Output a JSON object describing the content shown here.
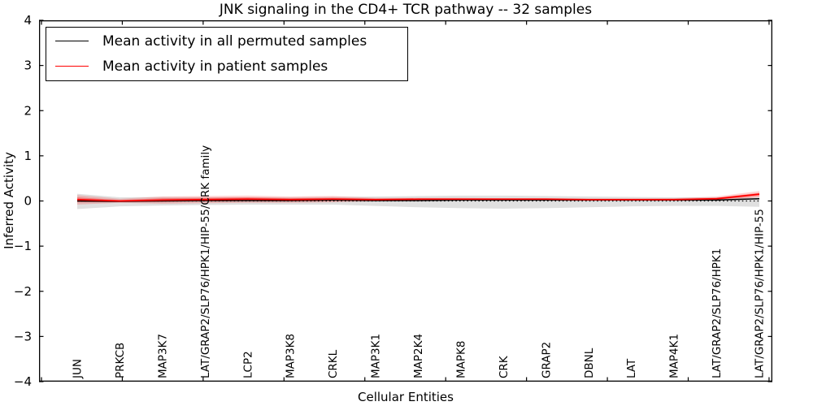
{
  "chart_data": {
    "type": "line",
    "title": "JNK signaling in the CD4+ TCR pathway -- 32 samples",
    "xlabel": "Cellular Entities",
    "ylabel": "Inferred Activity",
    "ylim": [
      -4,
      4
    ],
    "yticks": [
      4,
      3,
      2,
      1,
      0,
      -1,
      -2,
      -3,
      -4
    ],
    "grid": false,
    "categories": [
      "JUN",
      "PRKCB",
      "MAP3K7",
      "LAT/GRAP2/SLP76/HPK1/HIP-55/CRK family",
      "LCP2",
      "MAP3K8",
      "CRKL",
      "MAP3K1",
      "MAP2K4",
      "MAPK8",
      "CRK",
      "GRAP2",
      "DBNL",
      "LAT",
      "MAP4K1",
      "LAT/GRAP2/SLP76/HPK1",
      "LAT/GRAP2/SLP76/HPK1/HIP-55"
    ],
    "series": [
      {
        "name": "Mean activity in all permuted samples",
        "color": "#000000",
        "band_color": "rgba(0,0,0,0.12)",
        "values": [
          0.0,
          -0.01,
          0.0,
          0.01,
          0.01,
          0.01,
          0.02,
          0.01,
          0.01,
          0.02,
          0.02,
          0.02,
          0.02,
          0.02,
          0.02,
          0.02,
          0.05
        ],
        "band_upper": [
          0.16,
          0.08,
          0.09,
          0.08,
          0.08,
          0.08,
          0.09,
          0.1,
          0.11,
          0.12,
          0.12,
          0.11,
          0.1,
          0.09,
          0.08,
          0.08,
          0.09
        ],
        "band_lower": [
          -0.18,
          -0.12,
          -0.1,
          -0.09,
          -0.08,
          -0.08,
          -0.08,
          -0.11,
          -0.14,
          -0.16,
          -0.17,
          -0.16,
          -0.14,
          -0.12,
          -0.11,
          -0.11,
          -0.13
        ]
      },
      {
        "name": "Mean activity in patient samples",
        "color": "#ff0000",
        "band_color": "rgba(255,0,0,0.18)",
        "inner_band_color": "rgba(255,0,0,0.30)",
        "values": [
          0.03,
          0.0,
          0.02,
          0.03,
          0.04,
          0.03,
          0.04,
          0.03,
          0.04,
          0.04,
          0.04,
          0.04,
          0.03,
          0.03,
          0.03,
          0.05,
          0.15
        ],
        "band_upper": [
          0.13,
          0.05,
          0.1,
          0.11,
          0.12,
          0.1,
          0.11,
          0.07,
          0.07,
          0.07,
          0.06,
          0.06,
          0.05,
          0.05,
          0.06,
          0.1,
          0.22
        ],
        "band_lower": [
          -0.08,
          -0.04,
          -0.06,
          -0.05,
          -0.04,
          -0.04,
          -0.03,
          -0.01,
          0.01,
          0.01,
          0.01,
          0.02,
          0.01,
          0.01,
          0.01,
          0.01,
          0.08
        ],
        "inner_band_upper": [
          0.08,
          0.02,
          0.06,
          0.07,
          0.08,
          0.06,
          0.07,
          0.05,
          0.05,
          0.05,
          0.05,
          0.05,
          0.04,
          0.04,
          0.04,
          0.07,
          0.18
        ],
        "inner_band_lower": [
          -0.03,
          -0.02,
          -0.02,
          -0.01,
          0.0,
          -0.01,
          0.0,
          0.01,
          0.02,
          0.02,
          0.02,
          0.03,
          0.02,
          0.02,
          0.02,
          0.03,
          0.11
        ]
      }
    ],
    "zero_line": {
      "value": 0,
      "style": "dotted",
      "color": "#000000"
    },
    "legend": {
      "position": "upper left",
      "entries": [
        {
          "label": "Mean activity in all permuted samples",
          "color": "#000000"
        },
        {
          "label": "Mean activity in patient samples",
          "color": "#ff0000"
        }
      ]
    }
  }
}
